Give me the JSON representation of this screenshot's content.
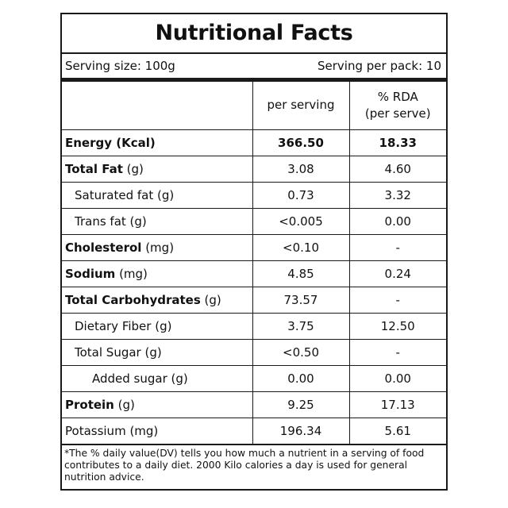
{
  "title": "Nutritional Facts",
  "serving_size": "Serving size: 100g",
  "servings_per_pack": "Serving per pack: 10",
  "columns": {
    "per_serving": "per serving",
    "rda_line1": "% RDA",
    "rda_line2": "(per serve)"
  },
  "rows": [
    {
      "name": "Energy (Kcal)",
      "unit": "",
      "per_serving": "366.50",
      "rda": "18.33"
    },
    {
      "name": "Total Fat",
      "unit": " (g)",
      "per_serving": "3.08",
      "rda": "4.60"
    },
    {
      "name": "Saturated fat (g)",
      "unit": "",
      "per_serving": "0.73",
      "rda": "3.32"
    },
    {
      "name": "Trans fat (g)",
      "unit": "",
      "per_serving": "<0.005",
      "rda": "0.00"
    },
    {
      "name": "Cholesterol",
      "unit": " (mg)",
      "per_serving": "<0.10",
      "rda": "-"
    },
    {
      "name": "Sodium",
      "unit": " (mg)",
      "per_serving": "4.85",
      "rda": "0.24"
    },
    {
      "name": "Total Carbohydrates",
      "unit": " (g)",
      "per_serving": "73.57",
      "rda": "-"
    },
    {
      "name": "Dietary Fiber (g)",
      "unit": "",
      "per_serving": "3.75",
      "rda": "12.50"
    },
    {
      "name": "Total Sugar (g)",
      "unit": "",
      "per_serving": "<0.50",
      "rda": "-"
    },
    {
      "name": "Added sugar (g)",
      "unit": "",
      "per_serving": "0.00",
      "rda": "0.00"
    },
    {
      "name": "Protein",
      "unit": " (g)",
      "per_serving": "9.25",
      "rda": "17.13"
    },
    {
      "name": "Potassium (mg)",
      "unit": "",
      "per_serving": "196.34",
      "rda": "5.61"
    }
  ],
  "footnote": "*The % daily value(DV) tells you how much a nutrient in a serving of food contributes to a daily diet. 2000 Kilo calories a day is used for general nutrition advice."
}
